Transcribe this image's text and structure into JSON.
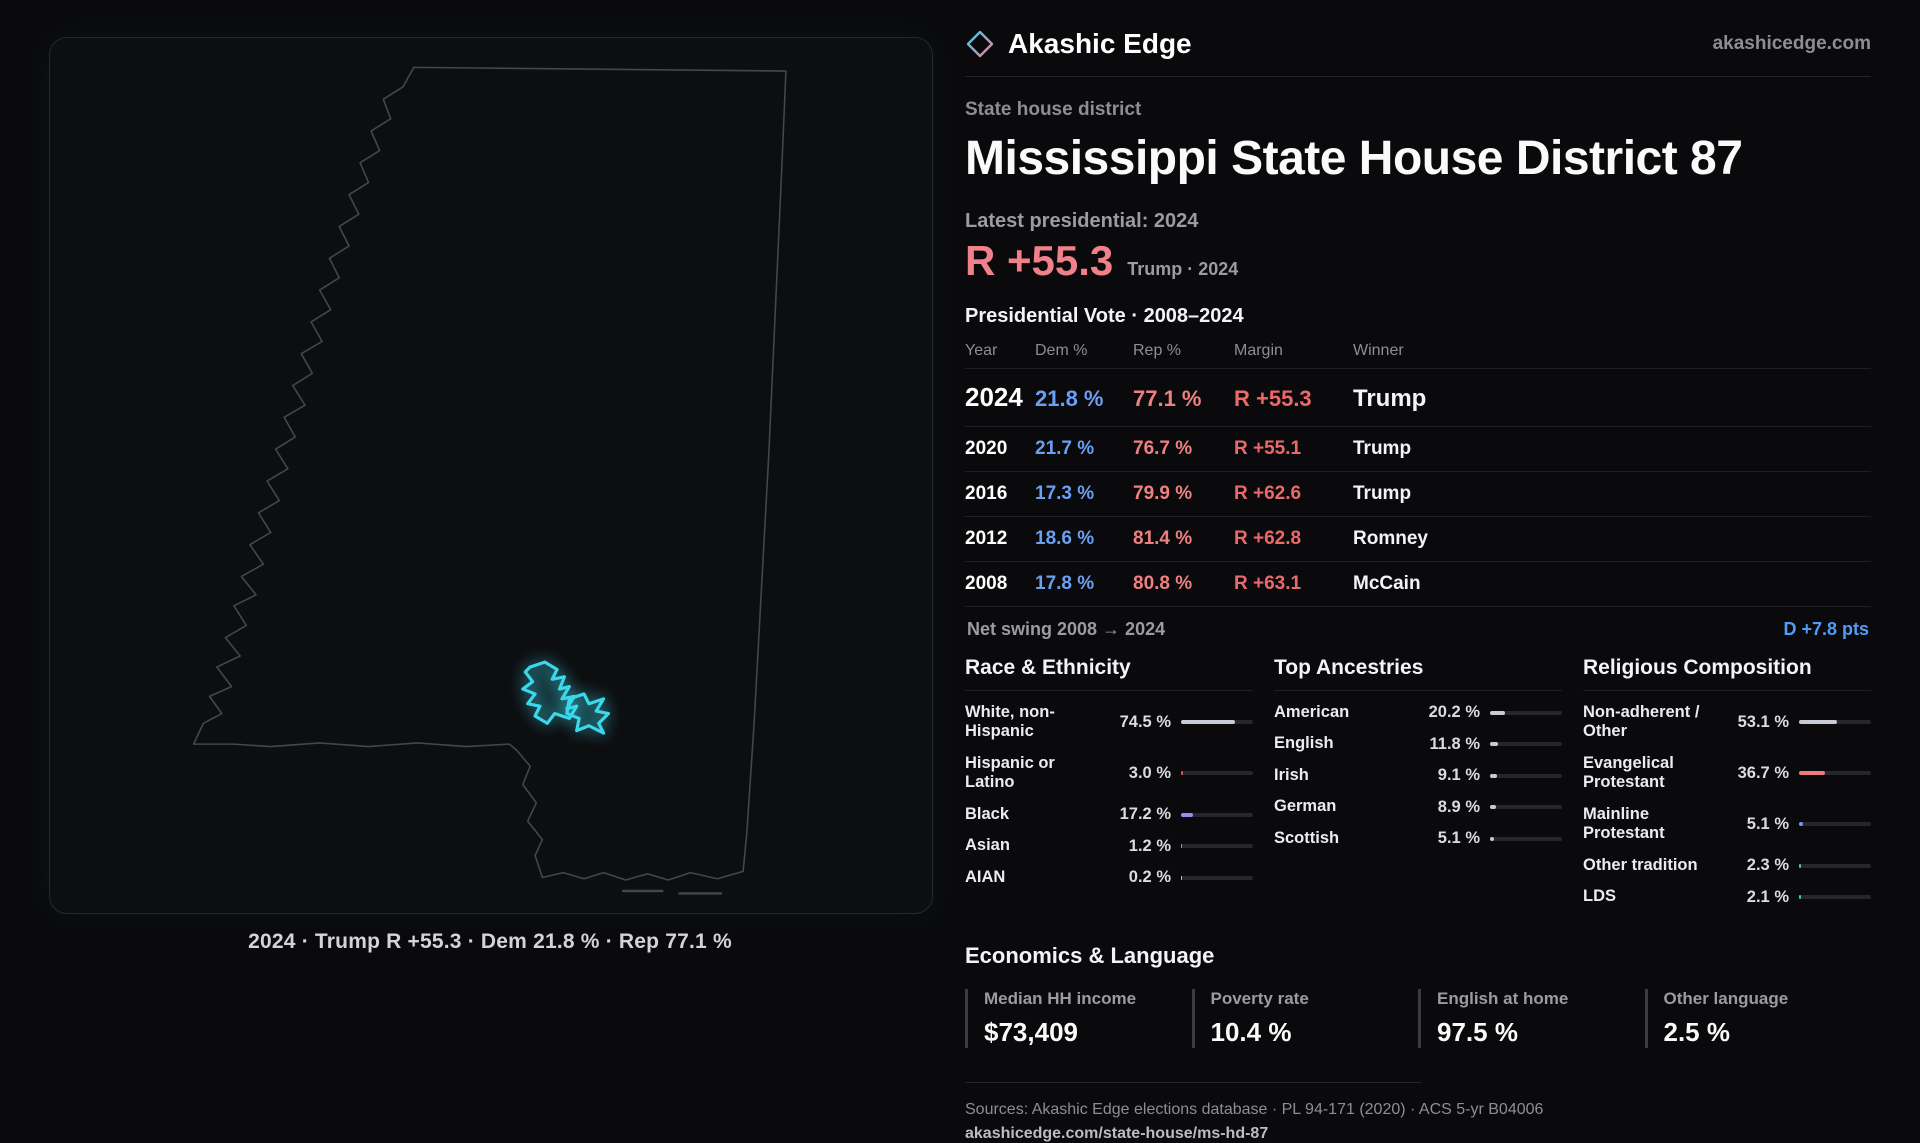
{
  "theme": {
    "background": "#0a0a0c",
    "dem_blue": "#6b9ff2",
    "rep_red": "#ef8080",
    "margin_red": "#ea6a6a",
    "swing_blue": "#4f9cf7",
    "district_cyan": "#3bd8ec",
    "big_margin_pink": "#f0808a"
  },
  "header": {
    "brand": "Akashic Edge",
    "site": "akashicedge.com"
  },
  "map": {
    "caption": "2024 · Trump R +55.3 · Dem 21.8 % · Rep 77.1 %"
  },
  "district": {
    "kicker": "State house district",
    "title": "Mississippi State House District 87",
    "latest_label": "Latest presidential: 2024",
    "margin_big": "R +55.3",
    "margin_sub": "Trump · 2024"
  },
  "vote_table": {
    "title": "Presidential Vote · 2008–2024",
    "columns": [
      "Year",
      "Dem %",
      "Rep %",
      "Margin",
      "Winner"
    ],
    "rows": [
      {
        "year": "2024",
        "dem": "21.8 %",
        "rep": "77.1 %",
        "margin": "R +55.3",
        "winner": "Trump"
      },
      {
        "year": "2020",
        "dem": "21.7 %",
        "rep": "76.7 %",
        "margin": "R +55.1",
        "winner": "Trump"
      },
      {
        "year": "2016",
        "dem": "17.3 %",
        "rep": "79.9 %",
        "margin": "R +62.6",
        "winner": "Trump"
      },
      {
        "year": "2012",
        "dem": "18.6 %",
        "rep": "81.4 %",
        "margin": "R +62.8",
        "winner": "Romney"
      },
      {
        "year": "2008",
        "dem": "17.8 %",
        "rep": "80.8 %",
        "margin": "R +63.1",
        "winner": "McCain"
      }
    ],
    "net_swing_label": "Net swing 2008 → 2024",
    "net_swing_value": "D +7.8 pts"
  },
  "demographics": {
    "race": {
      "title": "Race & Ethnicity",
      "rows": [
        {
          "label": "White, non-Hispanic",
          "value": "74.5 %",
          "pct": 74.5,
          "color": "#c7cbd6"
        },
        {
          "label": "Hispanic or Latino",
          "value": "3.0 %",
          "pct": 3.0,
          "color": "#e2574b"
        },
        {
          "label": "Black",
          "value": "17.2 %",
          "pct": 17.2,
          "color": "#9a8cf0"
        },
        {
          "label": "Asian",
          "value": "1.2 %",
          "pct": 1.2,
          "color": "#4ec9a4"
        },
        {
          "label": "AIAN",
          "value": "0.2 %",
          "pct": 0.2,
          "color": "#e0c05a"
        }
      ]
    },
    "ancestries": {
      "title": "Top Ancestries",
      "rows": [
        {
          "label": "American",
          "value": "20.2 %",
          "pct": 20.2,
          "color": "#c7cbd6"
        },
        {
          "label": "English",
          "value": "11.8 %",
          "pct": 11.8,
          "color": "#c7cbd6"
        },
        {
          "label": "Irish",
          "value": "9.1 %",
          "pct": 9.1,
          "color": "#c7cbd6"
        },
        {
          "label": "German",
          "value": "8.9 %",
          "pct": 8.9,
          "color": "#c7cbd6"
        },
        {
          "label": "Scottish",
          "value": "5.1 %",
          "pct": 5.1,
          "color": "#c7cbd6"
        }
      ]
    },
    "religion": {
      "title": "Religious Composition",
      "rows": [
        {
          "label": "Non-adherent / Other",
          "value": "53.1 %",
          "pct": 53.1,
          "color": "#c7cbd6"
        },
        {
          "label": "Evangelical Protestant",
          "value": "36.7 %",
          "pct": 36.7,
          "color": "#ef7a80"
        },
        {
          "label": "Mainline Protestant",
          "value": "5.1 %",
          "pct": 5.1,
          "color": "#6b9ff2"
        },
        {
          "label": "Other tradition",
          "value": "2.3 %",
          "pct": 2.3,
          "color": "#46c8c0"
        },
        {
          "label": "LDS",
          "value": "2.1 %",
          "pct": 2.1,
          "color": "#2fd4c0"
        }
      ]
    }
  },
  "economics": {
    "title": "Economics & Language",
    "stats": [
      {
        "label": "Median HH income",
        "value": "$73,409"
      },
      {
        "label": "Poverty rate",
        "value": "10.4 %"
      },
      {
        "label": "English at home",
        "value": "97.5 %"
      },
      {
        "label": "Other language",
        "value": "2.5 %"
      }
    ]
  },
  "footer": {
    "sources": "Sources: Akashic Edge elections database · PL 94-171 (2020) · ACS 5-yr B04006",
    "permalink": "akashicedge.com/state-house/ms-hd-87"
  }
}
